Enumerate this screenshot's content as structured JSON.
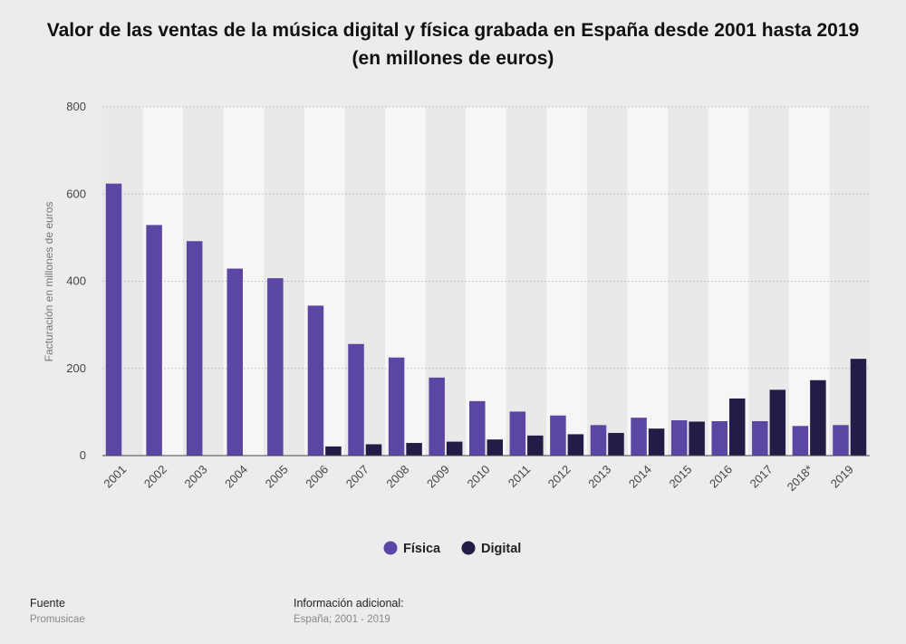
{
  "chart_data": {
    "type": "bar",
    "title": "Valor de las ventas de la música digital y física grabada en España desde 2001 hasta 2019 (en millones de euros)",
    "xlabel": "",
    "ylabel": "Facturación en millones de euros",
    "ylim": [
      0,
      800
    ],
    "yticks": [
      0,
      200,
      400,
      600,
      800
    ],
    "grid": true,
    "legend_position": "bottom-center",
    "categories": [
      "2001",
      "2002",
      "2003",
      "2004",
      "2005",
      "2006",
      "2007",
      "2008",
      "2009",
      "2010",
      "2011",
      "2012",
      "2013",
      "2014",
      "2015",
      "2016",
      "2017",
      "2018*",
      "2019"
    ],
    "series": [
      {
        "name": "Física",
        "color": "#5b46a3",
        "values": [
          624,
          529,
          492,
          429,
          407,
          344,
          256,
          225,
          179,
          125,
          101,
          92,
          70,
          87,
          81,
          79,
          79,
          68,
          70
        ]
      },
      {
        "name": "Digital",
        "color": "#231c46",
        "values": [
          0,
          0,
          0,
          0,
          0,
          21,
          26,
          29,
          32,
          37,
          46,
          49,
          52,
          62,
          78,
          131,
          151,
          173,
          222
        ]
      }
    ]
  },
  "footer": {
    "source_label": "Fuente",
    "source_value": "Promusicae",
    "info_label": "Información adicional:",
    "info_value": "España; 2001 - 2019"
  }
}
